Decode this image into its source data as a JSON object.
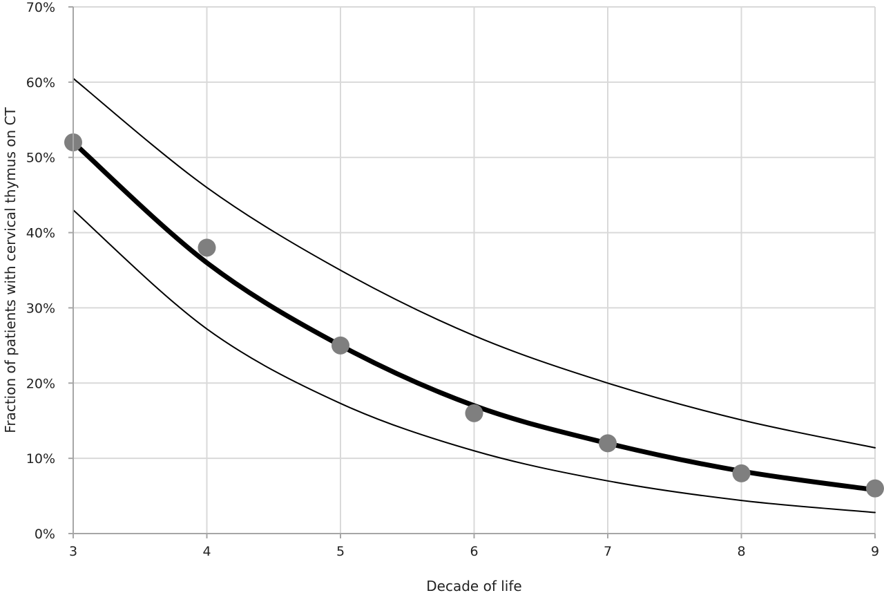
{
  "chart_data": {
    "type": "scatter",
    "title": "",
    "xlabel": "Decade of life",
    "ylabel": "Fraction of patients with cervical thymus on CT",
    "xlim": [
      3,
      9
    ],
    "ylim": [
      0,
      0.7
    ],
    "x_ticks": [
      3,
      4,
      5,
      6,
      7,
      8,
      9
    ],
    "x_tick_labels": [
      "3",
      "4",
      "5",
      "6",
      "7",
      "8",
      "9"
    ],
    "y_ticks": [
      0,
      0.1,
      0.2,
      0.3,
      0.4,
      0.5,
      0.6,
      0.7
    ],
    "y_tick_labels": [
      "0%",
      "10%",
      "20%",
      "30%",
      "40%",
      "50%",
      "60%",
      "70%"
    ],
    "grid": true,
    "legend": "none",
    "series": [
      {
        "kind": "points",
        "color": "#7f7f7f",
        "x": [
          3,
          4,
          5,
          6,
          7,
          8,
          9
        ],
        "y": [
          0.52,
          0.38,
          0.25,
          0.16,
          0.12,
          0.08,
          0.06
        ]
      },
      {
        "kind": "fit",
        "color": "#000000",
        "x": [
          3,
          4,
          5,
          6,
          7,
          8,
          9
        ],
        "y": [
          0.52,
          0.36,
          0.25,
          0.17,
          0.12,
          0.083,
          0.058
        ]
      },
      {
        "kind": "upper-bound",
        "color": "#000000",
        "x": [
          3,
          4,
          5,
          6,
          7,
          8,
          9
        ],
        "y": [
          0.605,
          0.46,
          0.35,
          0.263,
          0.2,
          0.151,
          0.114
        ]
      },
      {
        "kind": "lower-bound",
        "color": "#000000",
        "x": [
          3,
          4,
          5,
          6,
          7,
          8,
          9
        ],
        "y": [
          0.43,
          0.272,
          0.173,
          0.11,
          0.07,
          0.044,
          0.028
        ]
      }
    ]
  }
}
